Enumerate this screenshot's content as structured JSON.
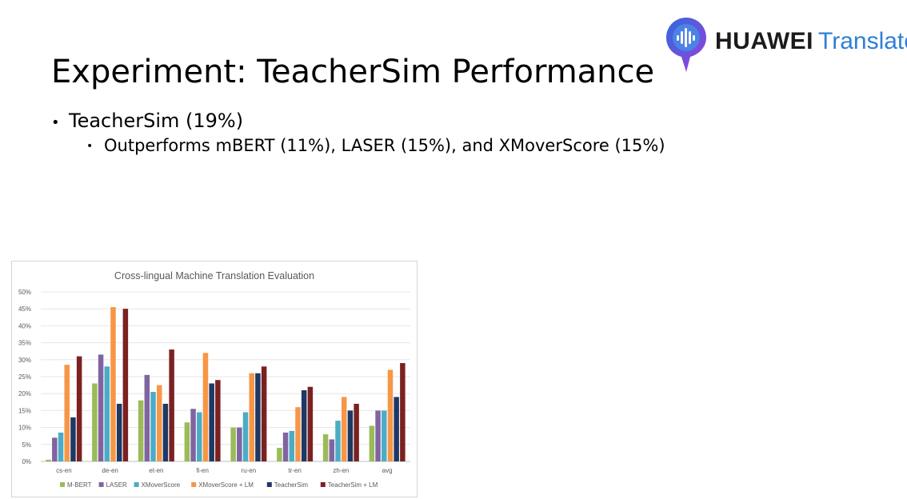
{
  "slide": {
    "title": "Experiment: TeacherSim Performance",
    "bullet_level1": "TeacherSim (19%)",
    "bullet_level2": "Outperforms mBERT (11%), LASER (15%), and XMoverScore (15%)"
  },
  "logo": {
    "brand": "HUAWEI",
    "product": "Translate",
    "icon": "speech-bubble-soundwave-icon"
  },
  "colors": {
    "M-BERT": "#9bbb59",
    "LASER": "#8064a2",
    "XMoverScore": "#4bacc6",
    "XMoverScore + LM": "#f79646",
    "TeacherSim": "#1f3864",
    "TeacherSim + LM": "#7b2121",
    "logo_gradient_start": "#2f6bdc",
    "logo_gradient_end": "#9b3ddc",
    "logo_text_blue": "#2f7fd6"
  },
  "chart_data": {
    "type": "bar",
    "title": "Cross-lingual Machine Translation Evaluation",
    "xlabel": "",
    "ylabel": "",
    "categories": [
      "cs-en",
      "de-en",
      "et-en",
      "fi-en",
      "ru-en",
      "tr-en",
      "zh-en",
      "avg"
    ],
    "y_ticks": [
      "0%",
      "5%",
      "10%",
      "15%",
      "20%",
      "25%",
      "30%",
      "35%",
      "40%",
      "45%",
      "50%"
    ],
    "ylim": [
      0,
      50
    ],
    "grid": true,
    "legend_position": "bottom",
    "series": [
      {
        "name": "M-BERT",
        "values": [
          0.5,
          23,
          18,
          11.5,
          10,
          4,
          8,
          10.5
        ]
      },
      {
        "name": "LASER",
        "values": [
          7,
          31.5,
          25.5,
          15.5,
          10,
          8.5,
          6.5,
          15
        ]
      },
      {
        "name": "XMoverScore",
        "values": [
          8.5,
          28,
          20.5,
          14.5,
          14.5,
          9,
          12,
          15
        ]
      },
      {
        "name": "XMoverScore + LM",
        "values": [
          28.5,
          45.5,
          22.5,
          32,
          26,
          16,
          19,
          27
        ]
      },
      {
        "name": "TeacherSim",
        "values": [
          13,
          17,
          17,
          23,
          26,
          21,
          15,
          19
        ]
      },
      {
        "name": "TeacherSim + LM",
        "values": [
          31,
          45,
          33,
          24,
          28,
          22,
          17,
          29
        ]
      }
    ]
  }
}
